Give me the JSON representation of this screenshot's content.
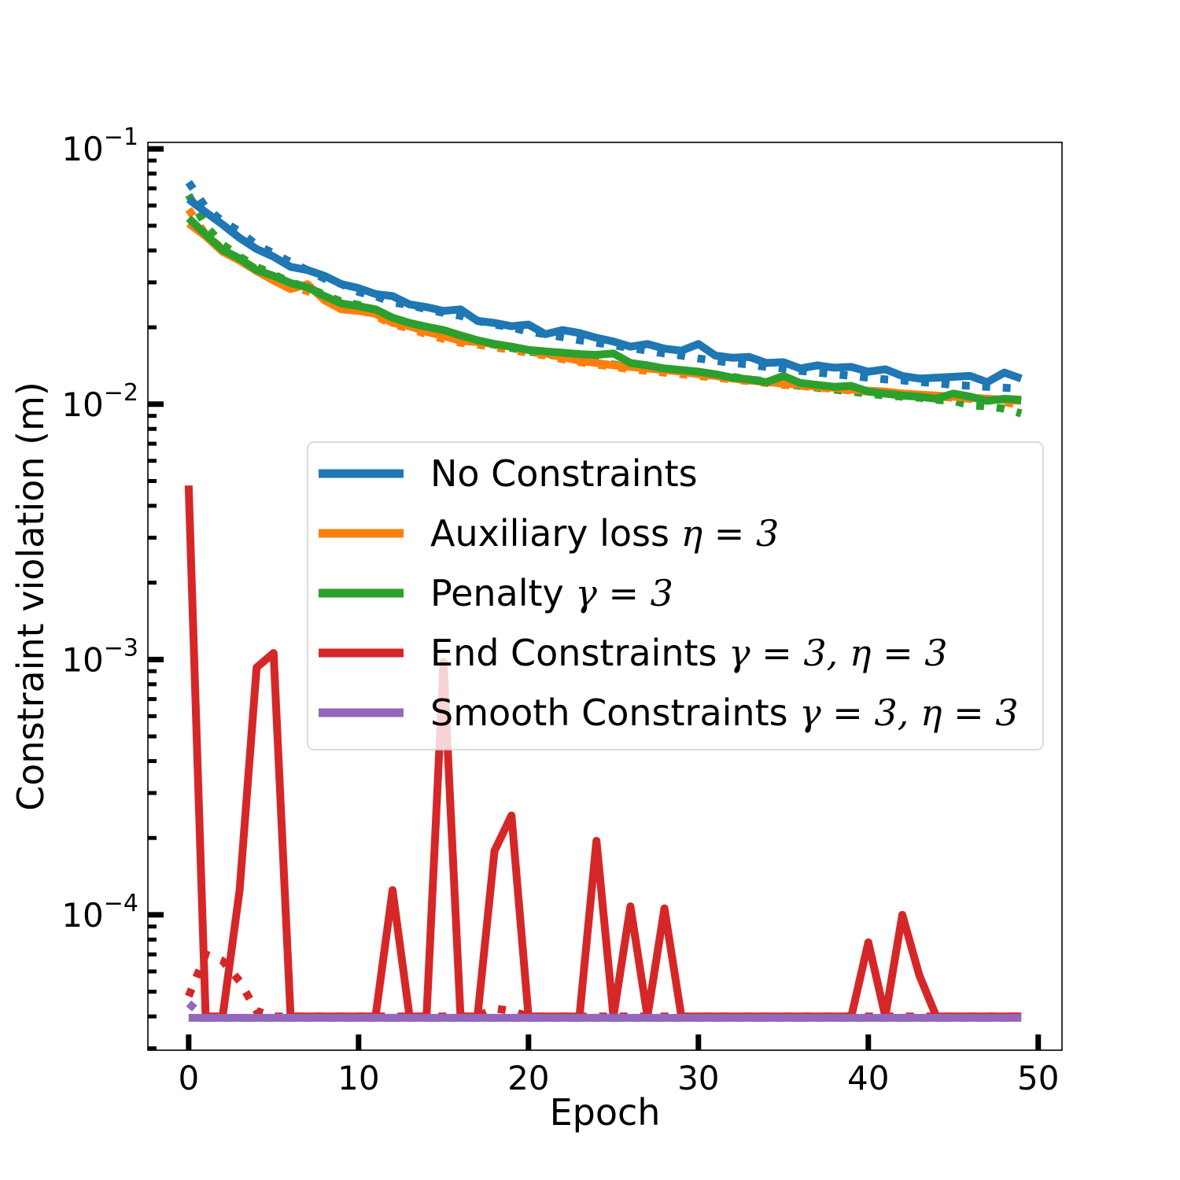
{
  "chart_data": {
    "type": "line",
    "title": "",
    "xlabel": "Epoch",
    "ylabel": "Constraint violation (m)",
    "yscale": "log",
    "xlim": [
      -2.4,
      51.4
    ],
    "ylim": [
      2.95e-05,
      0.106
    ],
    "x_ticks": [
      0,
      10,
      20,
      30,
      40,
      50
    ],
    "x_tick_labels": [
      "0",
      "10",
      "20",
      "30",
      "40",
      "50"
    ],
    "y_ticks": [
      0.0001,
      0.001,
      0.01,
      0.1
    ],
    "y_tick_labels": [
      {
        "base": "10",
        "exp": "−4"
      },
      {
        "base": "10",
        "exp": "−3"
      },
      {
        "base": "10",
        "exp": "−2"
      },
      {
        "base": "10",
        "exp": "−1"
      }
    ],
    "x": [
      0,
      1,
      2,
      3,
      4,
      5,
      6,
      7,
      8,
      9,
      10,
      11,
      12,
      13,
      14,
      15,
      16,
      17,
      18,
      19,
      20,
      21,
      22,
      23,
      24,
      25,
      26,
      27,
      28,
      29,
      30,
      31,
      32,
      33,
      34,
      35,
      36,
      37,
      38,
      39,
      40,
      41,
      42,
      43,
      44,
      45,
      46,
      47,
      48,
      49
    ],
    "legend": {
      "location": "center-right"
    },
    "series": [
      {
        "name": "No Constraints",
        "legend_text": "No Constraints ",
        "legend_math": "",
        "color": "#1f77b4",
        "style": "solid",
        "values": [
          0.0635,
          0.0565,
          0.0505,
          0.0448,
          0.0405,
          0.0378,
          0.0345,
          0.0335,
          0.0318,
          0.0295,
          0.0285,
          0.027,
          0.0265,
          0.0246,
          0.024,
          0.0232,
          0.0235,
          0.0212,
          0.0208,
          0.0202,
          0.0205,
          0.0188,
          0.0195,
          0.019,
          0.0182,
          0.0176,
          0.0168,
          0.0172,
          0.0165,
          0.0162,
          0.0172,
          0.0155,
          0.0152,
          0.0153,
          0.0145,
          0.0146,
          0.0138,
          0.0142,
          0.0139,
          0.014,
          0.0134,
          0.0137,
          0.0129,
          0.0126,
          0.0127,
          0.0128,
          0.0129,
          0.0122,
          0.0133,
          0.0126
        ]
      },
      {
        "name": "No Constraints (dotted)",
        "color": "#1f77b4",
        "style": "dotted",
        "values": [
          0.074,
          0.059,
          0.052,
          0.0475,
          0.042,
          0.039,
          0.036,
          0.0335,
          0.031,
          0.0295,
          0.0275,
          0.0265,
          0.025,
          0.0245,
          0.0235,
          0.0228,
          0.0222,
          0.0212,
          0.0205,
          0.02,
          0.0192,
          0.0188,
          0.0183,
          0.0178,
          0.0174,
          0.017,
          0.0166,
          0.0162,
          0.0158,
          0.0155,
          0.0151,
          0.0148,
          0.0145,
          0.0143,
          0.014,
          0.0138,
          0.0135,
          0.0133,
          0.0131,
          0.0129,
          0.0127,
          0.0125,
          0.0124,
          0.0122,
          0.0121,
          0.0119,
          0.0118,
          0.0117,
          0.0116,
          0.0115
        ]
      },
      {
        "name": "Auxiliary loss η = 3",
        "legend_text": "Auxiliary loss ",
        "legend_math": "η = 3",
        "color": "#ff7f0e",
        "style": "solid",
        "values": [
          0.051,
          0.0455,
          0.0395,
          0.0365,
          0.0332,
          0.0305,
          0.0282,
          0.0295,
          0.0255,
          0.0235,
          0.0232,
          0.0226,
          0.0208,
          0.0202,
          0.0192,
          0.0185,
          0.0177,
          0.0175,
          0.0172,
          0.0168,
          0.0163,
          0.0158,
          0.0153,
          0.0148,
          0.0145,
          0.0142,
          0.014,
          0.0138,
          0.0136,
          0.0134,
          0.0131,
          0.0129,
          0.0126,
          0.0124,
          0.0122,
          0.0121,
          0.0119,
          0.0117,
          0.0116,
          0.0114,
          0.0113,
          0.0112,
          0.011,
          0.0109,
          0.0108,
          0.0107,
          0.0106,
          0.0105,
          0.0104,
          0.0103
        ]
      },
      {
        "name": "Auxiliary loss (dotted)",
        "color": "#ff7f0e",
        "style": "dotted",
        "values": [
          0.058,
          0.0462,
          0.0405,
          0.037,
          0.0338,
          0.031,
          0.0288,
          0.0277,
          0.0258,
          0.0242,
          0.0235,
          0.0222,
          0.0205,
          0.0198,
          0.0188,
          0.018,
          0.0174,
          0.0171,
          0.0167,
          0.0163,
          0.0159,
          0.0155,
          0.015,
          0.0146,
          0.0143,
          0.014,
          0.0137,
          0.0135,
          0.0133,
          0.0131,
          0.0129,
          0.0127,
          0.0125,
          0.0123,
          0.0121,
          0.0119,
          0.0118,
          0.0116,
          0.0115,
          0.0113,
          0.0112,
          0.011,
          0.0109,
          0.0108,
          0.0107,
          0.0106,
          0.0105,
          0.0104,
          0.0102,
          0.0099
        ]
      },
      {
        "name": "Penalty γ = 3",
        "legend_text": "Penalty ",
        "legend_math": "γ = 3",
        "color": "#2ca02c",
        "style": "solid",
        "values": [
          0.0535,
          0.0462,
          0.0402,
          0.0372,
          0.0335,
          0.0318,
          0.0298,
          0.0287,
          0.0265,
          0.0248,
          0.0242,
          0.0235,
          0.0218,
          0.0208,
          0.0201,
          0.0195,
          0.0186,
          0.0178,
          0.0172,
          0.0168,
          0.0163,
          0.0161,
          0.0159,
          0.0157,
          0.0156,
          0.0158,
          0.0145,
          0.0142,
          0.0138,
          0.0136,
          0.0134,
          0.0131,
          0.0127,
          0.0125,
          0.0122,
          0.0129,
          0.0121,
          0.0119,
          0.0117,
          0.0118,
          0.0112,
          0.011,
          0.0108,
          0.0107,
          0.0105,
          0.011,
          0.0107,
          0.0103,
          0.0105,
          0.0104
        ]
      },
      {
        "name": "Penalty (dotted)",
        "color": "#2ca02c",
        "style": "dotted",
        "values": [
          0.066,
          0.05,
          0.0422,
          0.0378,
          0.0345,
          0.0322,
          0.03,
          0.0287,
          0.0268,
          0.0252,
          0.0245,
          0.0232,
          0.0215,
          0.0206,
          0.0199,
          0.0192,
          0.0184,
          0.0176,
          0.0171,
          0.0166,
          0.0161,
          0.0157,
          0.0153,
          0.0149,
          0.0146,
          0.0143,
          0.0141,
          0.0139,
          0.0137,
          0.0135,
          0.0132,
          0.013,
          0.0128,
          0.0125,
          0.0123,
          0.012,
          0.0118,
          0.0116,
          0.0114,
          0.0112,
          0.011,
          0.0108,
          0.0107,
          0.0106,
          0.0104,
          0.0103,
          0.0099,
          0.0098,
          0.0096,
          0.0092
        ]
      },
      {
        "name": "End Constraints γ = 3, η = 3",
        "legend_text": "End Constraints ",
        "legend_math": "γ = 3, η = 3",
        "color": "#d62728",
        "style": "solid",
        "values": [
          0.0048,
          4e-05,
          4e-05,
          0.000125,
          0.00093,
          0.00106,
          4e-05,
          4e-05,
          4e-05,
          4e-05,
          4e-05,
          4e-05,
          0.000125,
          4e-05,
          4e-05,
          0.00098,
          4e-05,
          4e-05,
          0.000178,
          0.000245,
          4e-05,
          4e-05,
          4e-05,
          4e-05,
          0.000195,
          4e-05,
          0.000108,
          4e-05,
          0.000106,
          4e-05,
          4e-05,
          4e-05,
          4e-05,
          4e-05,
          4e-05,
          4e-05,
          4e-05,
          4e-05,
          4e-05,
          4e-05,
          7.8e-05,
          4e-05,
          0.0001,
          5.8e-05,
          4e-05,
          4e-05,
          4e-05,
          4e-05,
          4e-05,
          4e-05
        ]
      },
      {
        "name": "End Constraints (dotted)",
        "color": "#d62728",
        "style": "dotted",
        "values": [
          4.8e-05,
          7e-05,
          6.6e-05,
          5.5e-05,
          4.2e-05,
          4e-05,
          4e-05,
          4e-05,
          4e-05,
          4e-05,
          4e-05,
          4e-05,
          4e-05,
          4e-05,
          4e-05,
          4e-05,
          4e-05,
          4e-05,
          4.3e-05,
          4.2e-05,
          4e-05,
          4e-05,
          4e-05,
          4e-05,
          4e-05,
          4e-05,
          4e-05,
          4e-05,
          4e-05,
          4e-05,
          4e-05,
          4e-05,
          4e-05,
          4e-05,
          4e-05,
          4e-05,
          4e-05,
          4e-05,
          4e-05,
          4e-05,
          4e-05,
          4e-05,
          4e-05,
          4e-05,
          4e-05,
          4e-05,
          4e-05,
          4e-05,
          4e-05,
          4e-05
        ]
      },
      {
        "name": "Smooth Constraints γ = 3, η = 3",
        "legend_text": "Smooth Constraints ",
        "legend_math": "γ = 3, η = 3",
        "color": "#9467bd",
        "style": "solid",
        "values": [
          3.95e-05,
          3.95e-05,
          3.95e-05,
          3.95e-05,
          3.95e-05,
          3.95e-05,
          3.95e-05,
          3.95e-05,
          3.95e-05,
          3.95e-05,
          3.95e-05,
          3.95e-05,
          3.95e-05,
          3.95e-05,
          3.95e-05,
          3.95e-05,
          3.95e-05,
          3.95e-05,
          3.95e-05,
          3.95e-05,
          3.95e-05,
          3.95e-05,
          3.95e-05,
          3.95e-05,
          3.95e-05,
          3.95e-05,
          3.95e-05,
          3.95e-05,
          3.95e-05,
          3.95e-05,
          3.95e-05,
          3.95e-05,
          3.95e-05,
          3.95e-05,
          3.95e-05,
          3.95e-05,
          3.95e-05,
          3.95e-05,
          3.95e-05,
          3.95e-05,
          3.95e-05,
          3.95e-05,
          3.95e-05,
          3.95e-05,
          3.95e-05,
          3.95e-05,
          3.95e-05,
          3.95e-05,
          3.95e-05,
          3.95e-05
        ]
      },
      {
        "name": "Smooth Constraints (dotted)",
        "color": "#9467bd",
        "style": "dotted",
        "values": [
          4.5e-05,
          3.95e-05,
          3.95e-05,
          3.95e-05,
          3.95e-05,
          3.95e-05,
          3.95e-05,
          3.95e-05,
          3.95e-05,
          3.95e-05,
          3.95e-05,
          3.95e-05,
          3.95e-05,
          3.95e-05,
          3.95e-05,
          3.95e-05,
          3.95e-05,
          3.95e-05,
          3.95e-05,
          3.95e-05,
          3.95e-05,
          3.95e-05,
          3.95e-05,
          3.95e-05,
          3.95e-05,
          3.95e-05,
          3.95e-05,
          3.95e-05,
          3.95e-05,
          3.95e-05,
          3.95e-05,
          3.95e-05,
          3.95e-05,
          3.95e-05,
          3.95e-05,
          3.95e-05,
          3.95e-05,
          3.95e-05,
          3.95e-05,
          3.95e-05,
          3.95e-05,
          3.95e-05,
          3.95e-05,
          3.95e-05,
          3.95e-05,
          3.95e-05,
          3.95e-05,
          3.95e-05,
          3.95e-05,
          3.95e-05
        ]
      }
    ]
  }
}
